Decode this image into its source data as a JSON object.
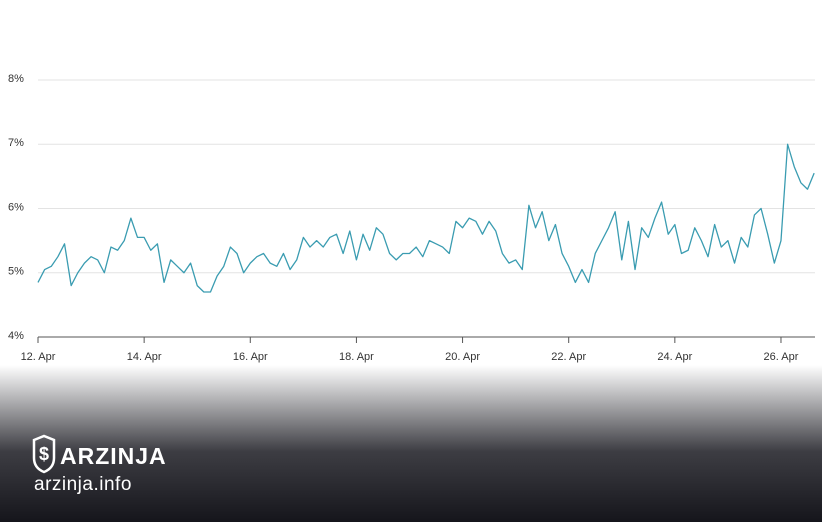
{
  "chart_data": {
    "type": "line",
    "categories": [
      "12. Apr",
      null,
      null,
      null,
      null,
      null,
      null,
      null,
      null,
      null,
      null,
      null,
      null,
      null,
      null,
      null,
      "14. Apr",
      null,
      null,
      null,
      null,
      null,
      null,
      null,
      null,
      null,
      null,
      null,
      null,
      null,
      null,
      null,
      "16. Apr",
      null,
      null,
      null,
      null,
      null,
      null,
      null,
      null,
      null,
      null,
      null,
      null,
      null,
      null,
      null,
      "18. Apr",
      null,
      null,
      null,
      null,
      null,
      null,
      null,
      null,
      null,
      null,
      null,
      null,
      null,
      null,
      null,
      "20. Apr",
      null,
      null,
      null,
      null,
      null,
      null,
      null,
      null,
      null,
      null,
      null,
      null,
      null,
      null,
      null,
      "22. Apr",
      null,
      null,
      null,
      null,
      null,
      null,
      null,
      null,
      null,
      null,
      null,
      null,
      null,
      null,
      null,
      "24. Apr",
      null,
      null,
      null,
      null,
      null,
      null,
      null,
      null,
      null,
      null,
      null,
      null,
      null,
      null,
      null,
      "26. Apr",
      null,
      null,
      null,
      null,
      null
    ],
    "values": [
      4.85,
      5.05,
      5.1,
      5.25,
      5.45,
      4.8,
      5.0,
      5.15,
      5.25,
      5.2,
      5.0,
      5.4,
      5.35,
      5.5,
      5.85,
      5.55,
      5.55,
      5.35,
      5.45,
      4.85,
      5.2,
      5.1,
      5.0,
      5.15,
      4.8,
      4.7,
      4.7,
      4.95,
      5.1,
      5.4,
      5.3,
      5.0,
      5.15,
      5.25,
      5.3,
      5.15,
      5.1,
      5.3,
      5.05,
      5.2,
      5.55,
      5.4,
      5.5,
      5.4,
      5.55,
      5.6,
      5.3,
      5.65,
      5.2,
      5.6,
      5.35,
      5.7,
      5.6,
      5.3,
      5.2,
      5.3,
      5.3,
      5.4,
      5.25,
      5.5,
      5.45,
      5.4,
      5.3,
      5.8,
      5.7,
      5.85,
      5.8,
      5.6,
      5.8,
      5.65,
      5.3,
      5.15,
      5.2,
      5.05,
      6.05,
      5.7,
      5.95,
      5.5,
      5.75,
      5.3,
      5.1,
      4.85,
      5.05,
      4.85,
      5.3,
      5.5,
      5.7,
      5.95,
      5.2,
      5.8,
      5.05,
      5.7,
      5.55,
      5.85,
      6.1,
      5.6,
      5.75,
      5.3,
      5.35,
      5.7,
      5.5,
      5.25,
      5.75,
      5.4,
      5.5,
      5.15,
      5.55,
      5.4,
      5.9,
      6.0,
      5.6,
      5.15,
      5.5,
      7.0,
      6.65,
      6.4,
      6.3,
      6.55
    ],
    "color": "#3a9cb1",
    "ylim": [
      4,
      8
    ],
    "yticks": [
      {
        "value": 4,
        "label": "4%"
      },
      {
        "value": 5,
        "label": "5%"
      },
      {
        "value": 6,
        "label": "6%"
      },
      {
        "value": 7,
        "label": "7%"
      },
      {
        "value": 8,
        "label": "8%"
      }
    ],
    "grid": true
  },
  "watermark": {
    "brand": "ARZINJA",
    "site": "arzinja.info"
  }
}
